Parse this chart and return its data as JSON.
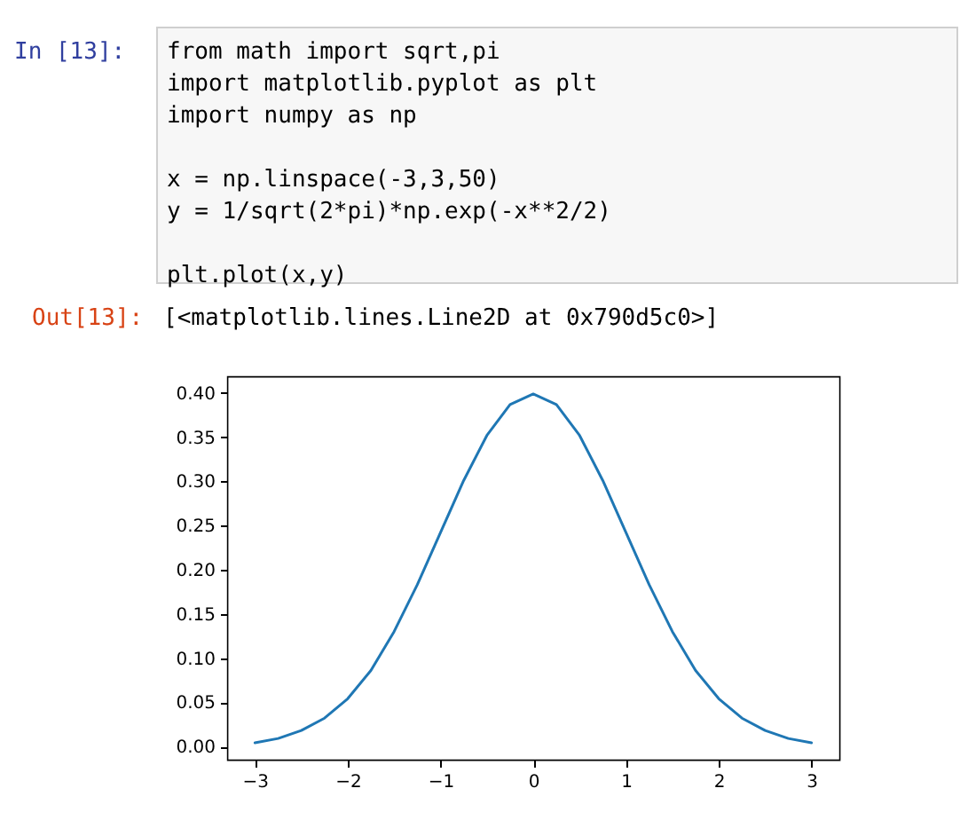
{
  "chart_data": {
    "type": "line",
    "annotations": [
      "In [13]:",
      "from math import sqrt,pi",
      "import matplotlib.pyplot as plt",
      "import numpy as np",
      "x = np.linspace(-3,3,50)",
      "y = 1/sqrt(2*pi)*np.exp(-x**2/2)",
      "plt.plot(x,y)",
      "Out[13]:",
      "[<matplotlib.lines.Line2D at 0x790d5c0>]"
    ],
    "x": [
      -3,
      -2.75,
      -2.5,
      -2.25,
      -2,
      -1.75,
      -1.5,
      -1.25,
      -1,
      -0.75,
      -0.5,
      -0.25,
      0,
      0.25,
      0.5,
      0.75,
      1,
      1.25,
      1.5,
      1.75,
      2,
      2.25,
      2.5,
      2.75,
      3
    ],
    "series": [
      {
        "color": "#1f77b4",
        "values": [
          0.004,
          0.009,
          0.018,
          0.032,
          0.054,
          0.086,
          0.13,
          0.183,
          0.242,
          0.301,
          0.352,
          0.387,
          0.399,
          0.387,
          0.352,
          0.301,
          0.242,
          0.183,
          0.13,
          0.086,
          0.054,
          0.032,
          0.018,
          0.009,
          0.004
        ]
      }
    ],
    "xlim": [
      -3.3,
      3.3
    ],
    "ylim": [
      -0.015,
      0.419
    ],
    "xticks": [
      {
        "value": -3,
        "label": "−3"
      },
      {
        "value": -2,
        "label": "−2"
      },
      {
        "value": -1,
        "label": "−1"
      },
      0,
      1,
      2,
      3
    ],
    "yticks": [
      {
        "value": 0,
        "label": "0.00"
      },
      {
        "value": 0.05,
        "label": "0.05"
      },
      {
        "value": 0.1,
        "label": "0.10"
      },
      {
        "value": 0.15,
        "label": "0.15"
      },
      {
        "value": 0.2,
        "label": "0.20"
      },
      {
        "value": 0.25,
        "label": "0.25"
      },
      {
        "value": 0.3,
        "label": "0.30"
      },
      {
        "value": 0.35,
        "label": "0.35"
      },
      {
        "value": 0.4,
        "label": "0.40"
      }
    ],
    "grid": false
  }
}
